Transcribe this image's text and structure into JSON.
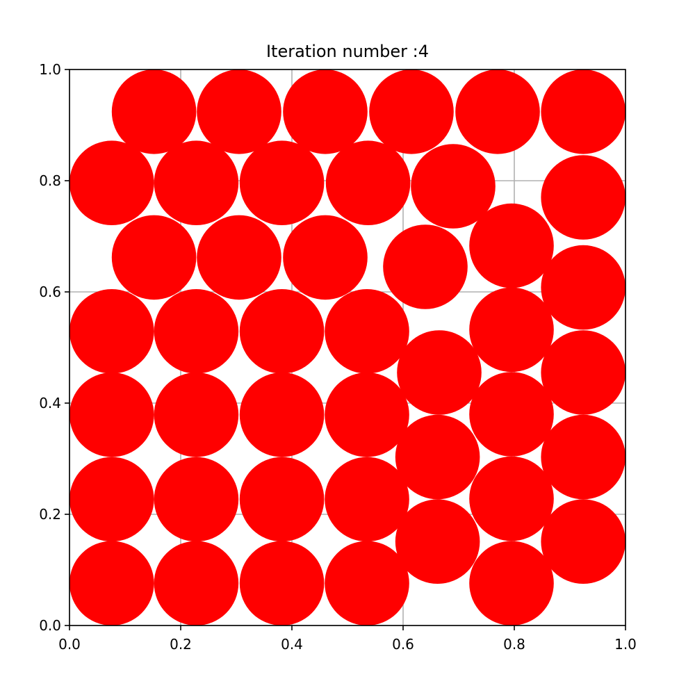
{
  "chart_data": {
    "type": "scatter",
    "title": "Iteration number :4",
    "xlabel": "",
    "ylabel": "",
    "xlim": [
      0.0,
      1.0
    ],
    "ylim": [
      0.0,
      1.0
    ],
    "xticks": [
      "0.0",
      "0.2",
      "0.4",
      "0.6",
      "0.8",
      "1.0"
    ],
    "yticks": [
      "0.0",
      "0.2",
      "0.4",
      "0.6",
      "0.8",
      "1.0"
    ],
    "grid": true,
    "marker": "filled circle",
    "color": "#ff0000",
    "circle_radius": 0.076,
    "points": [
      {
        "x": 0.152,
        "y": 0.924
      },
      {
        "x": 0.305,
        "y": 0.924
      },
      {
        "x": 0.46,
        "y": 0.924
      },
      {
        "x": 0.615,
        "y": 0.924
      },
      {
        "x": 0.77,
        "y": 0.924
      },
      {
        "x": 0.924,
        "y": 0.924
      },
      {
        "x": 0.076,
        "y": 0.796
      },
      {
        "x": 0.228,
        "y": 0.796
      },
      {
        "x": 0.382,
        "y": 0.796
      },
      {
        "x": 0.537,
        "y": 0.796
      },
      {
        "x": 0.69,
        "y": 0.79
      },
      {
        "x": 0.924,
        "y": 0.77
      },
      {
        "x": 0.152,
        "y": 0.662
      },
      {
        "x": 0.305,
        "y": 0.662
      },
      {
        "x": 0.46,
        "y": 0.662
      },
      {
        "x": 0.64,
        "y": 0.645
      },
      {
        "x": 0.795,
        "y": 0.683
      },
      {
        "x": 0.924,
        "y": 0.608
      },
      {
        "x": 0.076,
        "y": 0.529
      },
      {
        "x": 0.228,
        "y": 0.529
      },
      {
        "x": 0.382,
        "y": 0.529
      },
      {
        "x": 0.535,
        "y": 0.529
      },
      {
        "x": 0.795,
        "y": 0.532
      },
      {
        "x": 0.665,
        "y": 0.455
      },
      {
        "x": 0.924,
        "y": 0.455
      },
      {
        "x": 0.076,
        "y": 0.379
      },
      {
        "x": 0.228,
        "y": 0.379
      },
      {
        "x": 0.382,
        "y": 0.379
      },
      {
        "x": 0.535,
        "y": 0.379
      },
      {
        "x": 0.795,
        "y": 0.38
      },
      {
        "x": 0.662,
        "y": 0.303
      },
      {
        "x": 0.924,
        "y": 0.303
      },
      {
        "x": 0.076,
        "y": 0.227
      },
      {
        "x": 0.228,
        "y": 0.227
      },
      {
        "x": 0.382,
        "y": 0.227
      },
      {
        "x": 0.535,
        "y": 0.227
      },
      {
        "x": 0.795,
        "y": 0.228
      },
      {
        "x": 0.662,
        "y": 0.151
      },
      {
        "x": 0.924,
        "y": 0.151
      },
      {
        "x": 0.076,
        "y": 0.076
      },
      {
        "x": 0.228,
        "y": 0.076
      },
      {
        "x": 0.382,
        "y": 0.076
      },
      {
        "x": 0.535,
        "y": 0.076
      },
      {
        "x": 0.795,
        "y": 0.076
      }
    ]
  }
}
